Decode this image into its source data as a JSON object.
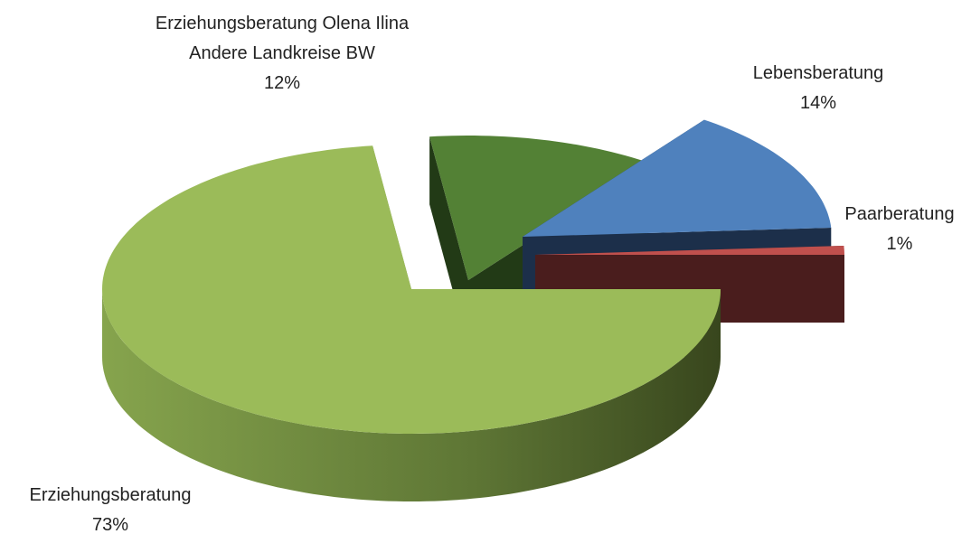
{
  "chart_data": {
    "type": "pie",
    "categories": [
      "Erziehungsberatung",
      "Erziehungsberatung Olena Ilina Andere Landkreise BW",
      "Lebensberatung",
      "Paarberatung"
    ],
    "values": [
      73,
      12,
      14,
      1
    ],
    "value_labels": [
      "73%",
      "12%",
      "14%",
      "1%"
    ],
    "colors": [
      "#9bbb59",
      "#538135",
      "#4f81bd",
      "#c0504d"
    ]
  }
}
